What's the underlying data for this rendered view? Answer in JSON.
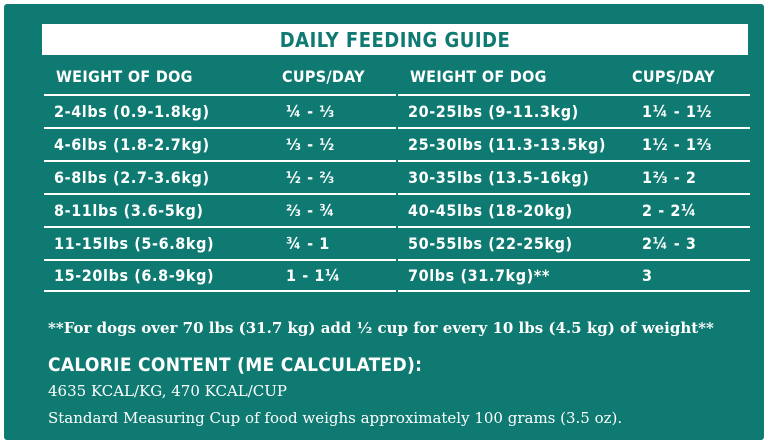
{
  "title": "DAILY FEEDING GUIDE",
  "left_table": {
    "headers": [
      "WEIGHT OF DOG",
      "CUPS/DAY"
    ],
    "rows": [
      {
        "weight": "2-4lbs (0.9-1.8kg)",
        "cups": "¼ - ⅓"
      },
      {
        "weight": "4-6lbs (1.8-2.7kg)",
        "cups": "⅓ - ½"
      },
      {
        "weight": "6-8lbs (2.7-3.6kg)",
        "cups": "½ - ⅔"
      },
      {
        "weight": "8-11lbs (3.6-5kg)",
        "cups": "⅔ - ¾"
      },
      {
        "weight": "11-15lbs (5-6.8kg)",
        "cups": "¾ - 1"
      },
      {
        "weight": "15-20lbs (6.8-9kg)",
        "cups": "1 - 1¼"
      }
    ]
  },
  "right_table": {
    "headers": [
      "WEIGHT OF DOG",
      "CUPS/DAY"
    ],
    "rows": [
      {
        "weight": "20-25lbs (9-11.3kg)",
        "cups": "1¼ - 1½"
      },
      {
        "weight": "25-30lbs (11.3-13.5kg)",
        "cups": "1½ - 1⅔"
      },
      {
        "weight": "30-35lbs (13.5-16kg)",
        "cups": "1⅔ - 2"
      },
      {
        "weight": "40-45lbs (18-20kg)",
        "cups": "2 - 2¼"
      },
      {
        "weight": "50-55lbs (22-25kg)",
        "cups": "2¼ - 3"
      },
      {
        "weight": "70lbs (31.7kg)**",
        "cups": "3"
      }
    ]
  },
  "footnote": "**For dogs over 70 lbs (31.7 kg) add ½ cup for every 10 lbs (4.5 kg) of weight**",
  "calorie": {
    "title": "CALORIE CONTENT (ME CALCULATED):",
    "values": "4635 KCAL/KG, 470 KCAL/CUP",
    "cup_note": "Standard Measuring Cup of food weighs approximately 100 grams (3.5 oz)."
  },
  "colors": {
    "panel": "#0f7a72",
    "text": "#ffffff"
  }
}
